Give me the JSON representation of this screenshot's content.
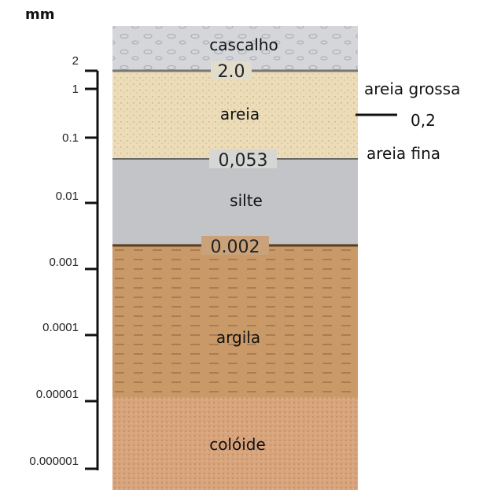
{
  "unit": "mm",
  "scale": [
    "2",
    "1",
    "0.1",
    "0.01",
    "0.001",
    "0.0001",
    "0.00001",
    "0.000001"
  ],
  "layers": [
    {
      "label": "cascalho"
    },
    {
      "label": "areia"
    },
    {
      "label": "silte"
    },
    {
      "label": "argila"
    },
    {
      "label": "colóide"
    }
  ],
  "boundaries": [
    "2.0",
    "0,053",
    "0.002"
  ],
  "sand_split": {
    "upper": "areia grossa",
    "value": "0,2",
    "lower": "areia fina"
  }
}
